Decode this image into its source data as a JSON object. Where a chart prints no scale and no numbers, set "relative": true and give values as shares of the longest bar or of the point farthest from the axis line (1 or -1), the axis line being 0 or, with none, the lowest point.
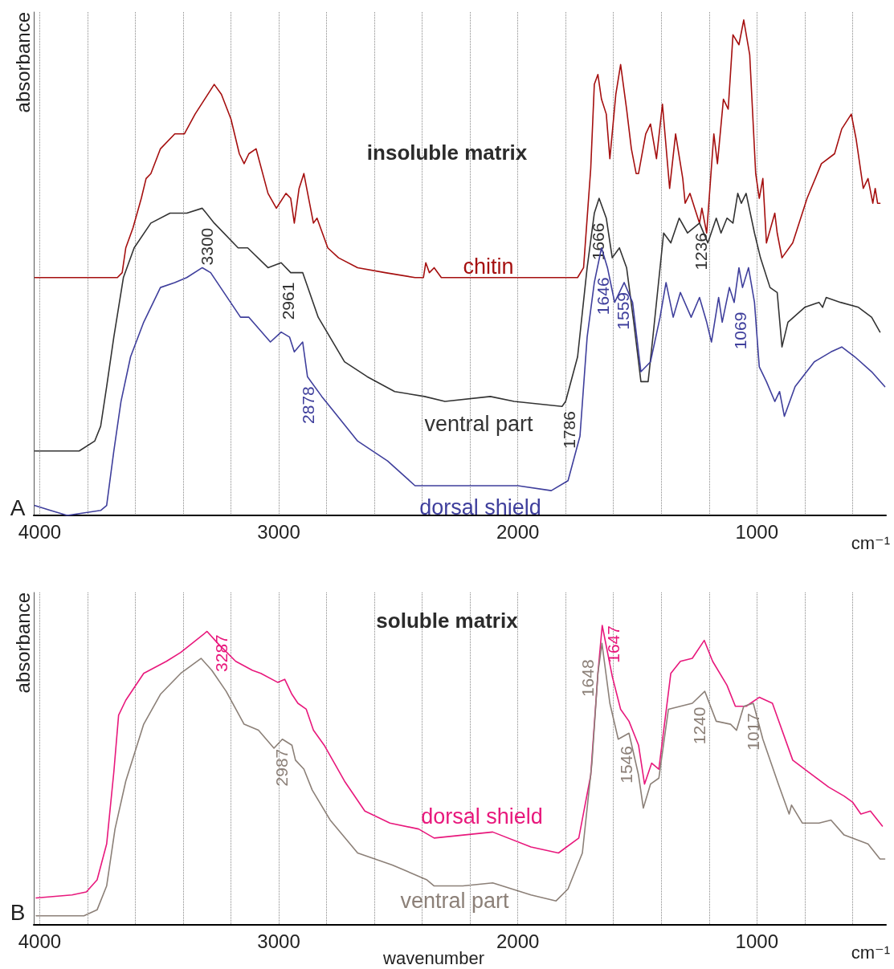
{
  "chart_data": [
    {
      "type": "line",
      "title": "insoluble matrix",
      "xlabel": "cm⁻¹",
      "ylabel": "absorbance",
      "relative": true,
      "grid": "x",
      "tick_labels": "x",
      "xlim": [
        4025,
        460
      ],
      "xticks": [
        4000,
        {
          "value": 3800,
          "label": null
        },
        {
          "value": 3600,
          "label": null
        },
        {
          "value": 3400,
          "label": null
        },
        {
          "value": 3200,
          "label": null
        },
        3000,
        {
          "value": 2800,
          "label": null
        },
        {
          "value": 2600,
          "label": null
        },
        {
          "value": 2400,
          "label": null
        },
        {
          "value": 2200,
          "label": null
        },
        2000,
        {
          "value": 1800,
          "label": null
        },
        {
          "value": 1600,
          "label": null
        },
        {
          "value": 1400,
          "label": null
        },
        {
          "value": 1200,
          "label": null
        },
        1000,
        {
          "value": 800,
          "label": null
        },
        {
          "value": 600,
          "label": null
        }
      ],
      "series": [
        {
          "name": "chitin",
          "color": "#a50f0f",
          "x": [
            4020,
            3675,
            3655,
            3640,
            3610,
            3575,
            3555,
            3535,
            3495,
            3435,
            3395,
            3350,
            3310,
            3270,
            3240,
            3200,
            3165,
            3145,
            3125,
            3095,
            3045,
            3010,
            2970,
            2950,
            2935,
            2915,
            2895,
            2875,
            2855,
            2840,
            2795,
            2750,
            2670,
            2555,
            2430,
            2395,
            2385,
            2370,
            2350,
            2320,
            2310,
            1750,
            1725,
            1695,
            1680,
            1665,
            1650,
            1630,
            1615,
            1590,
            1570,
            1545,
            1525,
            1505,
            1495,
            1465,
            1445,
            1420,
            1395,
            1365,
            1340,
            1310,
            1300,
            1280,
            1260,
            1240,
            1230,
            1210,
            1180,
            1165,
            1140,
            1120,
            1100,
            1075,
            1055,
            1030,
            1005,
            990,
            975,
            960,
            925,
            915,
            895,
            850,
            790,
            730,
            675,
            645,
            605,
            585,
            555,
            535,
            515,
            505,
            495,
            485
          ],
          "values": [
            0.48,
            0.48,
            0.49,
            0.54,
            0.58,
            0.64,
            0.68,
            0.69,
            0.74,
            0.77,
            0.77,
            0.81,
            0.84,
            0.87,
            0.85,
            0.8,
            0.73,
            0.71,
            0.73,
            0.74,
            0.65,
            0.62,
            0.65,
            0.64,
            0.59,
            0.66,
            0.69,
            0.64,
            0.59,
            0.6,
            0.54,
            0.52,
            0.5,
            0.49,
            0.48,
            0.48,
            0.51,
            0.49,
            0.5,
            0.48,
            0.48,
            0.48,
            0.5,
            0.7,
            0.87,
            0.89,
            0.84,
            0.81,
            0.72,
            0.85,
            0.91,
            0.82,
            0.74,
            0.69,
            0.69,
            0.77,
            0.79,
            0.72,
            0.83,
            0.66,
            0.77,
            0.68,
            0.63,
            0.65,
            0.62,
            0.59,
            0.62,
            0.57,
            0.77,
            0.71,
            0.84,
            0.82,
            0.97,
            0.95,
            1.0,
            0.93,
            0.69,
            0.64,
            0.68,
            0.55,
            0.61,
            0.57,
            0.52,
            0.55,
            0.64,
            0.71,
            0.73,
            0.78,
            0.81,
            0.76,
            0.66,
            0.68,
            0.63,
            0.66,
            0.63,
            0.63
          ]
        },
        {
          "name": "ventral part",
          "color": "#333333",
          "x": [
            4020,
            3835,
            3770,
            3745,
            3720,
            3690,
            3650,
            3605,
            3535,
            3455,
            3385,
            3320,
            3270,
            3170,
            3130,
            3045,
            2990,
            2950,
            2900,
            2835,
            2725,
            2630,
            2515,
            2390,
            2305,
            2115,
            2015,
            1815,
            1800,
            1750,
            1710,
            1680,
            1660,
            1630,
            1605,
            1575,
            1545,
            1515,
            1485,
            1455,
            1435,
            1390,
            1360,
            1325,
            1290,
            1240,
            1205,
            1170,
            1150,
            1125,
            1100,
            1080,
            1065,
            1045,
            1010,
            985,
            945,
            915,
            895,
            870,
            800,
            740,
            725,
            710,
            650,
            575,
            520,
            485
          ],
          "values": [
            0.13,
            0.13,
            0.15,
            0.18,
            0.26,
            0.36,
            0.48,
            0.54,
            0.59,
            0.61,
            0.61,
            0.62,
            0.59,
            0.54,
            0.54,
            0.5,
            0.51,
            0.49,
            0.49,
            0.4,
            0.31,
            0.28,
            0.25,
            0.24,
            0.23,
            0.24,
            0.23,
            0.22,
            0.23,
            0.32,
            0.5,
            0.61,
            0.64,
            0.6,
            0.52,
            0.54,
            0.5,
            0.39,
            0.27,
            0.27,
            0.36,
            0.57,
            0.55,
            0.6,
            0.57,
            0.59,
            0.55,
            0.6,
            0.57,
            0.6,
            0.59,
            0.65,
            0.63,
            0.65,
            0.57,
            0.52,
            0.46,
            0.45,
            0.34,
            0.39,
            0.42,
            0.43,
            0.42,
            0.44,
            0.43,
            0.42,
            0.4,
            0.37
          ]
        },
        {
          "name": "dorsal shield",
          "color": "#3f3f9c",
          "x": [
            4020,
            3955,
            3885,
            3745,
            3720,
            3690,
            3660,
            3620,
            3565,
            3495,
            3435,
            3385,
            3320,
            3285,
            3160,
            3125,
            3035,
            2990,
            2955,
            2935,
            2900,
            2880,
            2820,
            2670,
            2545,
            2430,
            2305,
            2145,
            2000,
            1860,
            1790,
            1740,
            1710,
            1680,
            1650,
            1625,
            1595,
            1555,
            1520,
            1485,
            1445,
            1405,
            1380,
            1350,
            1320,
            1275,
            1240,
            1210,
            1190,
            1160,
            1145,
            1115,
            1095,
            1075,
            1060,
            1035,
            1010,
            990,
            960,
            925,
            905,
            885,
            840,
            760,
            690,
            645,
            590,
            520,
            465
          ],
          "values": [
            0.02,
            0.01,
            0.0,
            0.01,
            0.02,
            0.13,
            0.23,
            0.32,
            0.39,
            0.46,
            0.47,
            0.48,
            0.5,
            0.49,
            0.4,
            0.4,
            0.35,
            0.37,
            0.36,
            0.33,
            0.35,
            0.28,
            0.24,
            0.15,
            0.11,
            0.06,
            0.06,
            0.06,
            0.06,
            0.05,
            0.07,
            0.16,
            0.36,
            0.47,
            0.54,
            0.5,
            0.43,
            0.47,
            0.43,
            0.29,
            0.31,
            0.4,
            0.47,
            0.4,
            0.45,
            0.4,
            0.44,
            0.39,
            0.35,
            0.44,
            0.39,
            0.46,
            0.43,
            0.5,
            0.46,
            0.5,
            0.43,
            0.3,
            0.27,
            0.23,
            0.25,
            0.2,
            0.26,
            0.31,
            0.33,
            0.34,
            0.32,
            0.29,
            0.26
          ]
        }
      ],
      "annotations": [
        "A",
        {
          "text": "3300",
          "x": 3300,
          "y": 0.6
        },
        {
          "text": "2961",
          "x": 2961,
          "y": 0.49
        },
        {
          "text": "2878",
          "x": 2878,
          "y": 0.28
        },
        {
          "text": "1786",
          "x": 1786,
          "y": 0.25
        },
        {
          "text": "1666",
          "x": 1666,
          "y": 0.63
        },
        {
          "text": "1646",
          "x": 1646,
          "y": 0.53
        },
        {
          "text": "1559",
          "x": 1559,
          "y": 0.47
        },
        {
          "text": "1236",
          "x": 1236,
          "y": 0.59
        },
        {
          "text": "1069",
          "x": 1069,
          "y": 0.48
        }
      ]
    },
    {
      "type": "line",
      "title": "soluble matrix",
      "xlabel": "cm⁻¹",
      "ylabel": "absorbance",
      "relative": true,
      "grid": "x",
      "tick_labels": "x",
      "xlim": [
        4025,
        460
      ],
      "xticks": [
        4000,
        {
          "value": 3800,
          "label": null
        },
        {
          "value": 3600,
          "label": null
        },
        {
          "value": 3400,
          "label": null
        },
        {
          "value": 3200,
          "label": null
        },
        3000,
        {
          "value": 2800,
          "label": null
        },
        {
          "value": 2600,
          "label": null
        },
        {
          "value": 2400,
          "label": null
        },
        {
          "value": 2200,
          "label": null
        },
        2000,
        {
          "value": 1800,
          "label": null
        },
        {
          "value": 1600,
          "label": null
        },
        {
          "value": 1400,
          "label": null
        },
        {
          "value": 1200,
          "label": null
        },
        1000,
        {
          "value": 800,
          "label": null
        },
        {
          "value": 600,
          "label": null
        }
      ],
      "series": [
        {
          "name": "dorsal shield",
          "color": "#e8187c",
          "x": [
            4015,
            3865,
            3805,
            3760,
            3720,
            3690,
            3670,
            3640,
            3565,
            3470,
            3410,
            3300,
            3255,
            3180,
            3110,
            3075,
            3005,
            2975,
            2945,
            2920,
            2885,
            2855,
            2810,
            2725,
            2640,
            2535,
            2415,
            2350,
            2105,
            1945,
            1830,
            1745,
            1695,
            1665,
            1647,
            1605,
            1570,
            1535,
            1495,
            1470,
            1440,
            1410,
            1360,
            1320,
            1270,
            1220,
            1185,
            1125,
            1090,
            1045,
            990,
            935,
            850,
            800,
            700,
            635,
            600,
            565,
            525,
            475
          ],
          "values": [
            0.09,
            0.1,
            0.11,
            0.15,
            0.27,
            0.51,
            0.7,
            0.75,
            0.84,
            0.88,
            0.91,
            0.98,
            0.94,
            0.88,
            0.85,
            0.84,
            0.81,
            0.82,
            0.77,
            0.74,
            0.72,
            0.65,
            0.6,
            0.48,
            0.38,
            0.34,
            0.32,
            0.29,
            0.31,
            0.26,
            0.24,
            0.29,
            0.5,
            0.84,
            1.0,
            0.83,
            0.72,
            0.68,
            0.6,
            0.47,
            0.54,
            0.52,
            0.84,
            0.88,
            0.89,
            0.95,
            0.88,
            0.8,
            0.73,
            0.73,
            0.76,
            0.74,
            0.55,
            0.52,
            0.46,
            0.43,
            0.41,
            0.37,
            0.38,
            0.33
          ]
        },
        {
          "name": "ventral part",
          "color": "#8c8078",
          "x": [
            4015,
            3815,
            3760,
            3720,
            3685,
            3640,
            3565,
            3495,
            3410,
            3325,
            3280,
            3220,
            3145,
            3085,
            3020,
            2985,
            2945,
            2930,
            2895,
            2860,
            2785,
            2670,
            2525,
            2380,
            2350,
            2230,
            2105,
            1945,
            1840,
            1790,
            1730,
            1690,
            1665,
            1648,
            1615,
            1580,
            1535,
            1495,
            1475,
            1445,
            1410,
            1370,
            1320,
            1270,
            1218,
            1170,
            1110,
            1085,
            1055,
            1015,
            975,
            910,
            865,
            855,
            810,
            740,
            690,
            635,
            535,
            485,
            465
          ],
          "values": [
            0.03,
            0.03,
            0.05,
            0.13,
            0.32,
            0.48,
            0.67,
            0.77,
            0.84,
            0.89,
            0.85,
            0.78,
            0.67,
            0.65,
            0.59,
            0.62,
            0.6,
            0.55,
            0.52,
            0.45,
            0.35,
            0.24,
            0.2,
            0.15,
            0.13,
            0.13,
            0.14,
            0.1,
            0.08,
            0.12,
            0.24,
            0.54,
            0.84,
            0.94,
            0.74,
            0.62,
            0.64,
            0.5,
            0.39,
            0.47,
            0.49,
            0.72,
            0.73,
            0.74,
            0.78,
            0.68,
            0.67,
            0.65,
            0.73,
            0.74,
            0.62,
            0.47,
            0.37,
            0.4,
            0.34,
            0.34,
            0.35,
            0.3,
            0.27,
            0.22,
            0.22
          ]
        }
      ],
      "annotations": [
        "B",
        "wavenumber",
        {
          "text": "3287",
          "x": 3287,
          "y": 0.97
        },
        {
          "text": "2987",
          "x": 2987,
          "y": 0.62
        },
        {
          "text": "1648",
          "x": 1648,
          "y": 0.94
        },
        {
          "text": "1647",
          "x": 1647,
          "y": 1.0
        },
        {
          "text": "1546",
          "x": 1546,
          "y": 0.63
        },
        {
          "text": "1240",
          "x": 1240,
          "y": 0.76
        },
        {
          "text": "1017",
          "x": 1017,
          "y": 0.74
        }
      ]
    }
  ]
}
